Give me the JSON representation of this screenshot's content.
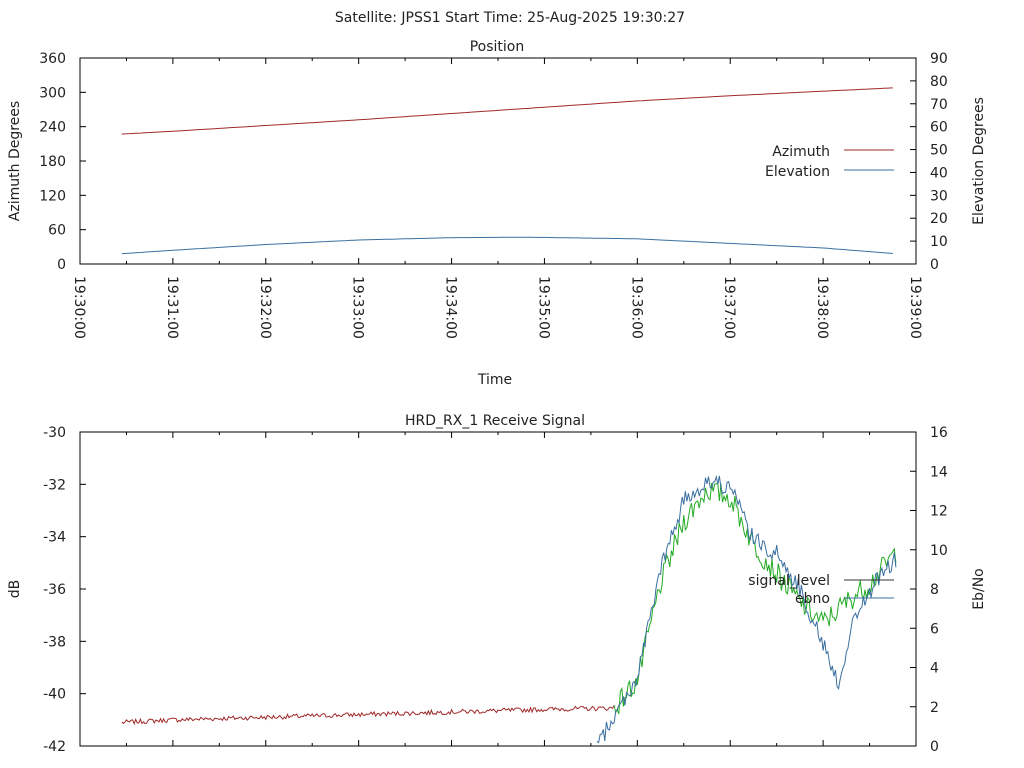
{
  "header": {
    "title": "Satellite: JPSS1    Start Time: 25-Aug-2025 19:30:27"
  },
  "chart_data": [
    {
      "type": "line",
      "title": "Position",
      "xlabel": "Time",
      "ylabel": "Azimuth Degrees",
      "y2label": "Elevation Degrees",
      "xlim": [
        "19:30:00",
        "19:39:00"
      ],
      "ylim": [
        0,
        360
      ],
      "y2lim": [
        0,
        90
      ],
      "x_ticks": [
        "19:30:00",
        "19:31:00",
        "19:32:00",
        "19:33:00",
        "19:34:00",
        "19:35:00",
        "19:36:00",
        "19:37:00",
        "19:38:00",
        "19:39:00"
      ],
      "y_ticks": [
        "0",
        "60",
        "120",
        "180",
        "240",
        "300",
        "360"
      ],
      "y2_ticks": [
        "0",
        "10",
        "20",
        "30",
        "40",
        "50",
        "60",
        "70",
        "80",
        "90"
      ],
      "legend_position": "right",
      "series": [
        {
          "name": "Azimuth",
          "axis": "left",
          "color": "#a02828",
          "x": [
            "19:30:27",
            "19:31:00",
            "19:32:00",
            "19:33:00",
            "19:34:00",
            "19:35:00",
            "19:36:00",
            "19:37:00",
            "19:38:00",
            "19:38:47"
          ],
          "y": [
            227,
            232,
            242,
            252,
            263,
            274,
            285,
            294,
            302,
            308
          ]
        },
        {
          "name": "Elevation",
          "axis": "right",
          "color": "#3a6fa0",
          "x": [
            "19:30:27",
            "19:31:00",
            "19:32:00",
            "19:33:00",
            "19:34:00",
            "19:34:45",
            "19:35:00",
            "19:36:00",
            "19:37:00",
            "19:38:00",
            "19:38:47"
          ],
          "y": [
            4.5,
            6,
            8.5,
            10.5,
            11.5,
            11.7,
            11.6,
            11,
            9,
            7,
            4.5
          ]
        }
      ]
    },
    {
      "type": "line",
      "title": "HRD_RX_1 Receive Signal",
      "xlabel": "",
      "ylabel": "dB",
      "y2label": "Eb/No",
      "ylim": [
        -42,
        -30
      ],
      "y2lim": [
        0,
        16
      ],
      "y_ticks": [
        "-30",
        "-32",
        "-34",
        "-36",
        "-38",
        "-40",
        "-42"
      ],
      "y2_ticks": [
        "0",
        "2",
        "4",
        "6",
        "8",
        "10",
        "12",
        "14",
        "16"
      ],
      "legend_position": "right",
      "series": [
        {
          "name": "signal_level",
          "axis": "left",
          "colors": [
            "#a02828",
            "#22aa22"
          ],
          "x": [
            "19:30:27",
            "19:31:00",
            "19:32:00",
            "19:33:00",
            "19:34:00",
            "19:35:00",
            "19:35:45",
            "19:36:00",
            "19:36:15",
            "19:36:30",
            "19:36:45",
            "19:37:00",
            "19:37:15",
            "19:37:30",
            "19:37:45",
            "19:38:00",
            "19:38:15",
            "19:38:30",
            "19:38:47"
          ],
          "y": [
            -41.1,
            -41.0,
            -40.9,
            -40.8,
            -40.7,
            -40.6,
            -40.55,
            -39.5,
            -35.8,
            -33.4,
            -32.2,
            -32.5,
            -34.3,
            -35.4,
            -36.5,
            -37.3,
            -36.5,
            -35.8,
            -34.6
          ]
        },
        {
          "name": "ebno",
          "axis": "right",
          "color": "#3a6fa0",
          "x": [
            "19:35:34",
            "19:36:00",
            "19:36:15",
            "19:36:30",
            "19:36:45",
            "19:37:00",
            "19:37:15",
            "19:37:30",
            "19:37:45",
            "19:38:00",
            "19:38:10",
            "19:38:20",
            "19:38:35",
            "19:38:47"
          ],
          "y": [
            0,
            3.5,
            9.0,
            12.5,
            13.5,
            13.2,
            10.5,
            9.8,
            8.0,
            5.2,
            3.2,
            6.5,
            8.5,
            9.5
          ]
        }
      ]
    }
  ]
}
